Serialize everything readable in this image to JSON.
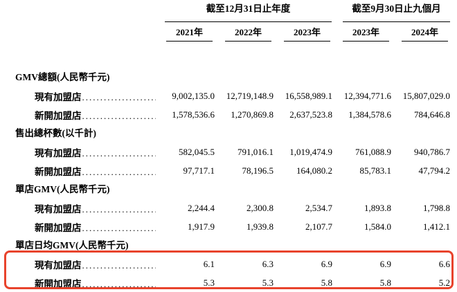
{
  "table": {
    "col_groups": [
      {
        "label": "截至12月31日止年度",
        "span": 3
      },
      {
        "label": "截至9月30日止九個月",
        "span": 2
      }
    ],
    "year_headers": [
      "2021年",
      "2022年",
      "2023年",
      "2023年",
      "2024年"
    ],
    "sections": [
      {
        "title": "GMV總額(人民幣千元)",
        "highlighted": false,
        "rows": [
          {
            "label": "現有加盟店",
            "values": [
              "9,002,135.0",
              "12,719,148.9",
              "16,558,989.1",
              "12,394,771.6",
              "15,807,029.0"
            ]
          },
          {
            "label": "新開加盟店",
            "values": [
              "1,578,536.6",
              "1,270,869.8",
              "2,637,523.8",
              "1,384,578.6",
              "784,646.8"
            ]
          }
        ]
      },
      {
        "title": "售出總杯數(以千計)",
        "highlighted": false,
        "rows": [
          {
            "label": "現有加盟店",
            "values": [
              "582,045.5",
              "791,016.1",
              "1,019,474.9",
              "761,088.9",
              "940,786.7"
            ]
          },
          {
            "label": "新開加盟店",
            "values": [
              "97,717.1",
              "78,196.5",
              "164,080.2",
              "85,783.1",
              "47,794.2"
            ]
          }
        ]
      },
      {
        "title": "單店GMV(人民幣千元)",
        "highlighted": false,
        "rows": [
          {
            "label": "現有加盟店",
            "values": [
              "2,244.4",
              "2,300.8",
              "2,534.7",
              "1,893.8",
              "1,798.8"
            ]
          },
          {
            "label": "新開加盟店",
            "values": [
              "1,917.9",
              "1,939.8",
              "2,107.7",
              "1,584.0",
              "1,412.1"
            ]
          }
        ]
      },
      {
        "title": "單店日均GMV(人民幣千元)",
        "highlighted": true,
        "rows": [
          {
            "label": "現有加盟店",
            "values": [
              "6.1",
              "6.3",
              "6.9",
              "6.9",
              "6.6"
            ]
          },
          {
            "label": "新開加盟店",
            "values": [
              "5.3",
              "5.3",
              "5.8",
              "5.8",
              "5.2"
            ]
          }
        ]
      }
    ],
    "highlight_color": "#e8432c"
  }
}
